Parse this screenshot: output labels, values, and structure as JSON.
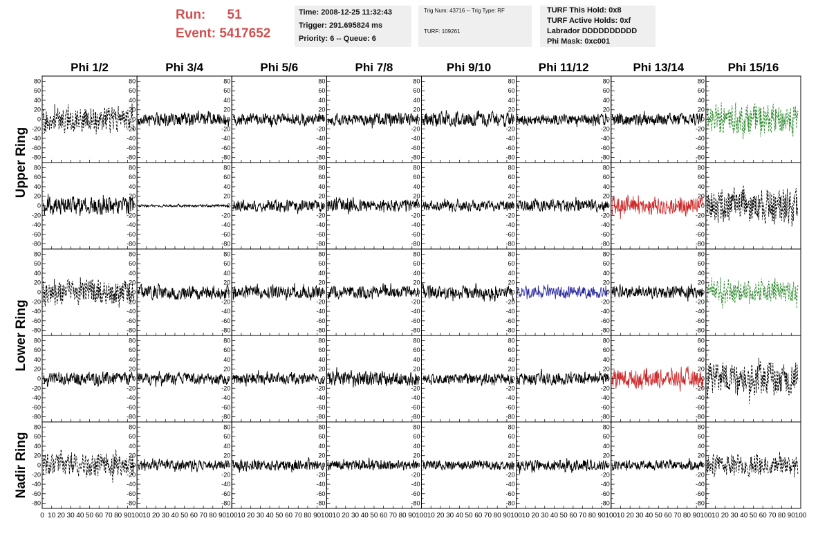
{
  "header": {
    "run_label": "Run:",
    "run_value": "51",
    "event_label": "Event:",
    "event_value": "5417652"
  },
  "info_box_1": {
    "time": "Time: 2008-12-25 11:32:43",
    "trigger": "Trigger: 291.695824 ms",
    "priority": "Priority: 6 -- Queue: 6"
  },
  "info_box_2": {
    "trig": "Trig Num: 43716 -- Trig Type: RF",
    "turf": "TURF: 109261"
  },
  "info_box_3": {
    "this_hold": "TURF This Hold: 0x8",
    "active_holds": "TURF Active Holds: 0xf",
    "labrador": "Labrador DDDDDDDDDD",
    "phi_mask": "Phi Mask: 0xc001"
  },
  "colors": {
    "header_red": "#d05050",
    "trace_black": "#000000",
    "trace_green": "#2e8b2e",
    "trace_red": "#cc2a2a",
    "trace_blue": "#2a2aa0",
    "box_bg": "#efefef"
  },
  "chart_data": {
    "type": "line",
    "grid": false,
    "columns": [
      "Phi 1/2",
      "Phi 3/4",
      "Phi 5/6",
      "Phi 7/8",
      "Phi 9/10",
      "Phi 11/12",
      "Phi 13/14",
      "Phi 15/16"
    ],
    "ring_labels": [
      "Upper Ring",
      "Lower Ring",
      "Nadir Ring"
    ],
    "rows": 5,
    "ylim": [
      -85,
      85
    ],
    "yticks": [
      -80,
      -60,
      -40,
      -20,
      0,
      20,
      40,
      60,
      80
    ],
    "xlim": [
      0,
      100
    ],
    "xticks": [
      0,
      10,
      20,
      30,
      40,
      50,
      60,
      70,
      80,
      90,
      100
    ],
    "samples": 260,
    "panels": [
      {
        "row": 0,
        "col": 0,
        "color": "#000000",
        "dashed": true,
        "amplitude": 32,
        "seed": 11
      },
      {
        "row": 0,
        "col": 1,
        "color": "#000000",
        "dashed": false,
        "amplitude": 16,
        "seed": 12
      },
      {
        "row": 0,
        "col": 2,
        "color": "#000000",
        "dashed": false,
        "amplitude": 15,
        "seed": 13
      },
      {
        "row": 0,
        "col": 3,
        "color": "#000000",
        "dashed": false,
        "amplitude": 15,
        "seed": 14
      },
      {
        "row": 0,
        "col": 4,
        "color": "#000000",
        "dashed": false,
        "amplitude": 18,
        "seed": 15
      },
      {
        "row": 0,
        "col": 5,
        "color": "#000000",
        "dashed": false,
        "amplitude": 14,
        "seed": 16
      },
      {
        "row": 0,
        "col": 6,
        "color": "#000000",
        "dashed": false,
        "amplitude": 15,
        "seed": 17
      },
      {
        "row": 0,
        "col": 7,
        "color": "#2e8b2e",
        "dashed": true,
        "amplitude": 38,
        "seed": 18
      },
      {
        "row": 1,
        "col": 0,
        "color": "#000000",
        "dashed": false,
        "amplitude": 22,
        "seed": 21
      },
      {
        "row": 1,
        "col": 1,
        "color": "#000000",
        "dashed": false,
        "amplitude": 3,
        "seed": 22
      },
      {
        "row": 1,
        "col": 2,
        "color": "#000000",
        "dashed": false,
        "amplitude": 14,
        "seed": 23
      },
      {
        "row": 1,
        "col": 3,
        "color": "#000000",
        "dashed": false,
        "amplitude": 16,
        "seed": 24
      },
      {
        "row": 1,
        "col": 4,
        "color": "#000000",
        "dashed": false,
        "amplitude": 13,
        "seed": 25
      },
      {
        "row": 1,
        "col": 5,
        "color": "#000000",
        "dashed": false,
        "amplitude": 15,
        "seed": 26
      },
      {
        "row": 1,
        "col": 6,
        "color": "#cc2a2a",
        "dashed": false,
        "amplitude": 22,
        "seed": 27
      },
      {
        "row": 1,
        "col": 7,
        "color": "#000000",
        "dashed": true,
        "amplitude": 45,
        "seed": 28
      },
      {
        "row": 2,
        "col": 0,
        "color": "#000000",
        "dashed": true,
        "amplitude": 32,
        "seed": 31
      },
      {
        "row": 2,
        "col": 1,
        "color": "#000000",
        "dashed": false,
        "amplitude": 17,
        "seed": 32
      },
      {
        "row": 2,
        "col": 2,
        "color": "#000000",
        "dashed": false,
        "amplitude": 16,
        "seed": 33
      },
      {
        "row": 2,
        "col": 3,
        "color": "#000000",
        "dashed": false,
        "amplitude": 15,
        "seed": 34
      },
      {
        "row": 2,
        "col": 4,
        "color": "#000000",
        "dashed": false,
        "amplitude": 16,
        "seed": 35
      },
      {
        "row": 2,
        "col": 5,
        "color": "#2a2aa0",
        "dashed": false,
        "amplitude": 14,
        "seed": 36
      },
      {
        "row": 2,
        "col": 6,
        "color": "#000000",
        "dashed": false,
        "amplitude": 15,
        "seed": 37
      },
      {
        "row": 2,
        "col": 7,
        "color": "#2e8b2e",
        "dashed": true,
        "amplitude": 28,
        "seed": 38
      },
      {
        "row": 3,
        "col": 0,
        "color": "#000000",
        "dashed": false,
        "amplitude": 16,
        "seed": 41
      },
      {
        "row": 3,
        "col": 1,
        "color": "#000000",
        "dashed": false,
        "amplitude": 14,
        "seed": 42
      },
      {
        "row": 3,
        "col": 2,
        "color": "#000000",
        "dashed": false,
        "amplitude": 14,
        "seed": 43
      },
      {
        "row": 3,
        "col": 3,
        "color": "#000000",
        "dashed": false,
        "amplitude": 18,
        "seed": 44
      },
      {
        "row": 3,
        "col": 4,
        "color": "#000000",
        "dashed": false,
        "amplitude": 13,
        "seed": 45
      },
      {
        "row": 3,
        "col": 5,
        "color": "#000000",
        "dashed": false,
        "amplitude": 15,
        "seed": 46
      },
      {
        "row": 3,
        "col": 6,
        "color": "#cc2a2a",
        "dashed": false,
        "amplitude": 22,
        "seed": 47
      },
      {
        "row": 3,
        "col": 7,
        "color": "#000000",
        "dashed": true,
        "amplitude": 42,
        "seed": 48
      },
      {
        "row": 4,
        "col": 0,
        "color": "#000000",
        "dashed": true,
        "amplitude": 28,
        "seed": 51
      },
      {
        "row": 4,
        "col": 1,
        "color": "#000000",
        "dashed": false,
        "amplitude": 12,
        "seed": 52
      },
      {
        "row": 4,
        "col": 2,
        "color": "#000000",
        "dashed": false,
        "amplitude": 14,
        "seed": 53
      },
      {
        "row": 4,
        "col": 3,
        "color": "#000000",
        "dashed": false,
        "amplitude": 12,
        "seed": 54
      },
      {
        "row": 4,
        "col": 4,
        "color": "#000000",
        "dashed": false,
        "amplitude": 12,
        "seed": 55
      },
      {
        "row": 4,
        "col": 5,
        "color": "#000000",
        "dashed": false,
        "amplitude": 14,
        "seed": 56
      },
      {
        "row": 4,
        "col": 6,
        "color": "#000000",
        "dashed": false,
        "amplitude": 12,
        "seed": 57
      },
      {
        "row": 4,
        "col": 7,
        "color": "#000000",
        "dashed": true,
        "amplitude": 26,
        "seed": 58
      }
    ]
  }
}
